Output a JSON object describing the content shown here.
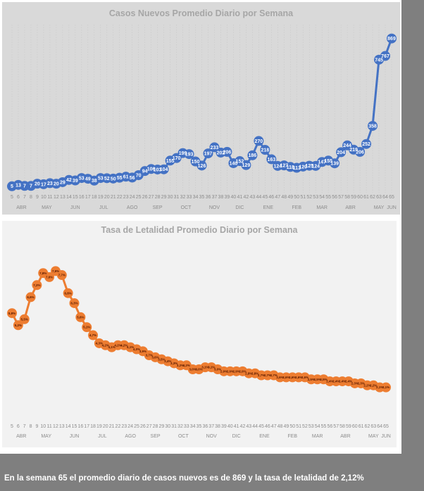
{
  "footer": {
    "summary": "En la semana 65 el promedio diario de casos nuevos  es de 869  y la tasa de letalidad de 2,12%"
  },
  "chart_data": [
    {
      "type": "line",
      "title": "Casos Nuevos  Promedio Diario por Semana",
      "xlabel": "",
      "ylabel": "",
      "series_color": "#4472c4",
      "grid": true,
      "legend": "none",
      "x": [
        5,
        6,
        7,
        8,
        9,
        10,
        11,
        12,
        13,
        14,
        15,
        16,
        17,
        18,
        19,
        20,
        21,
        22,
        23,
        24,
        25,
        26,
        27,
        28,
        29,
        30,
        31,
        32,
        33,
        34,
        35,
        36,
        37,
        38,
        39,
        40,
        41,
        42,
        43,
        44,
        45,
        46,
        47,
        48,
        49,
        50,
        51,
        52,
        53,
        54,
        55,
        56,
        57,
        58,
        59,
        60,
        61,
        62,
        63,
        64,
        65
      ],
      "x_tick_labels": [
        "5",
        "6",
        "7",
        "8",
        "9",
        "10",
        "11",
        "12",
        "13",
        "14",
        "15",
        "16",
        "17",
        "18",
        "19",
        "20",
        "21",
        "22",
        "23",
        "24",
        "25",
        "26",
        "27",
        "28",
        "29",
        "30",
        "31",
        "32",
        "33",
        "34",
        "35",
        "36",
        "37",
        "38",
        "39",
        "40",
        "41",
        "42",
        "43",
        "44",
        "45",
        "46",
        "47",
        "48",
        "49",
        "50",
        "51",
        "52",
        "53",
        "54",
        "55",
        "56",
        "57",
        "58",
        "59",
        "60",
        "61",
        "62",
        "63",
        "64",
        "65"
      ],
      "month_labels": [
        {
          "label": "ABR",
          "week": 6.5
        },
        {
          "label": "MAY",
          "week": 10.5
        },
        {
          "label": "JUN",
          "week": 15
        },
        {
          "label": "JUL",
          "week": 19.5
        },
        {
          "label": "AGO",
          "week": 24
        },
        {
          "label": "SEP",
          "week": 28
        },
        {
          "label": "OCT",
          "week": 32.5
        },
        {
          "label": "NOV",
          "week": 37
        },
        {
          "label": "DIC",
          "week": 41
        },
        {
          "label": "ENE",
          "week": 45.5
        },
        {
          "label": "FEB",
          "week": 50
        },
        {
          "label": "MAR",
          "week": 54
        },
        {
          "label": "ABR",
          "week": 58.5
        },
        {
          "label": "MAY",
          "week": 63
        },
        {
          "label": "JUN",
          "week": 65
        }
      ],
      "values": [
        5,
        13,
        7,
        7,
        20,
        17,
        23,
        20,
        29,
        42,
        39,
        53,
        49,
        38,
        53,
        52,
        50,
        55,
        61,
        56,
        70,
        94,
        106,
        103,
        104,
        155,
        170,
        199,
        193,
        150,
        126,
        197,
        233,
        202,
        206,
        140,
        152,
        129,
        186,
        270,
        218,
        163,
        124,
        127,
        118,
        113,
        120,
        125,
        124,
        147,
        155,
        139,
        204,
        244,
        219,
        206,
        252,
        358,
        745,
        767,
        869
      ],
      "data_labels": [
        "5",
        "13",
        "7",
        "7",
        "20",
        "17",
        "23",
        "20",
        "29",
        "42",
        "39",
        "53",
        "49",
        "38",
        "53",
        "52",
        "50",
        "55",
        "61",
        "56",
        "70",
        "94",
        "106",
        "103",
        "104",
        "155",
        "170",
        "199",
        "193",
        "150",
        "126",
        "197",
        "233",
        "202",
        "206",
        "140",
        "152",
        "129",
        "186",
        "270",
        "218",
        "163",
        "124",
        "127",
        "118",
        "113",
        "120",
        "125",
        "124",
        "147",
        "155",
        "139",
        "204",
        "244",
        "219",
        "206",
        "252",
        "358",
        "745",
        "767",
        "869"
      ],
      "ylim": [
        0,
        950
      ]
    },
    {
      "type": "line",
      "title": "Tasa de Letalidad Promedio Diario por Semana",
      "xlabel": "",
      "ylabel": "",
      "series_color": "#ed7d31",
      "grid": false,
      "legend": "none",
      "x": [
        5,
        6,
        7,
        8,
        9,
        10,
        11,
        12,
        13,
        14,
        15,
        16,
        17,
        18,
        19,
        20,
        21,
        22,
        23,
        24,
        25,
        26,
        27,
        28,
        29,
        30,
        31,
        32,
        33,
        34,
        35,
        36,
        37,
        38,
        39,
        40,
        41,
        42,
        43,
        44,
        45,
        46,
        47,
        48,
        49,
        50,
        51,
        52,
        53,
        54,
        55,
        56,
        57,
        58,
        59,
        60,
        61,
        62,
        63,
        64,
        65
      ],
      "x_tick_labels": [
        "5",
        "6",
        "7",
        "8",
        "9",
        "10",
        "11",
        "12",
        "13",
        "14",
        "15",
        "16",
        "17",
        "18",
        "19",
        "20",
        "21",
        "22",
        "23",
        "24",
        "25",
        "26",
        "27",
        "28",
        "29",
        "30",
        "31",
        "32",
        "33",
        "34",
        "35",
        "36",
        "37",
        "38",
        "39",
        "40",
        "41",
        "42",
        "43",
        "44",
        "45",
        "46",
        "47",
        "48",
        "49",
        "50",
        "51",
        "52",
        "53",
        "54",
        "55",
        "56",
        "57",
        "58",
        "59",
        "60",
        "61",
        "62",
        "63",
        "64",
        "65"
      ],
      "month_labels": [
        {
          "label": "ABR",
          "week": 6.5
        },
        {
          "label": "MAY",
          "week": 10.5
        },
        {
          "label": "JUN",
          "week": 15
        },
        {
          "label": "JUL",
          "week": 19.5
        },
        {
          "label": "AGO",
          "week": 24
        },
        {
          "label": "SEP",
          "week": 28
        },
        {
          "label": "OCT",
          "week": 32.5
        },
        {
          "label": "NOV",
          "week": 37
        },
        {
          "label": "DIC",
          "week": 41
        },
        {
          "label": "ENE",
          "week": 45.5
        },
        {
          "label": "FEB",
          "week": 50
        },
        {
          "label": "MAR",
          "week": 54
        },
        {
          "label": "ABR",
          "week": 58.5
        },
        {
          "label": "MAY",
          "week": 63
        },
        {
          "label": "JUN",
          "week": 65
        }
      ],
      "values": [
        5.8,
        5.2,
        5.5,
        6.6,
        7.2,
        7.8,
        7.6,
        7.9,
        7.7,
        6.8,
        6.3,
        5.6,
        5.1,
        4.7,
        4.3,
        4.2,
        4.1,
        4.2,
        4.2,
        4.1,
        4.0,
        3.9,
        3.7,
        3.6,
        3.5,
        3.4,
        3.3,
        3.2,
        3.2,
        3.0,
        3.0,
        3.1,
        3.1,
        3.0,
        2.9,
        2.9,
        2.9,
        2.9,
        2.8,
        2.8,
        2.7,
        2.7,
        2.7,
        2.6,
        2.6,
        2.6,
        2.6,
        2.6,
        2.5,
        2.5,
        2.5,
        2.4,
        2.4,
        2.4,
        2.4,
        2.3,
        2.3,
        2.2,
        2.2,
        2.1,
        2.1
      ],
      "data_labels": [
        "5,8%",
        "5,2%",
        "5,5%",
        "6,6%",
        "7,2%",
        "7,8%",
        "7,6%",
        "7,9%",
        "7,7%",
        "6,8%",
        "6,3%",
        "5,6%",
        "5,1%",
        "4,7%",
        "4,3%",
        "4,2%",
        "4,1%",
        "4,2%",
        "4,2%",
        "4,1%",
        "4,0%",
        "3,9%",
        "3,7%",
        "3,6%",
        "3,5%",
        "3,4%",
        "3,3%",
        "3,2%",
        "3,2%",
        "3,0%",
        "3,0%",
        "3,1%",
        "3,1%",
        "3,0%",
        "2,9%",
        "2,9%",
        "2,9%",
        "2,9%",
        "2,8%",
        "2,8%",
        "2,7%",
        "2,7%",
        "2,7%",
        "2,6%",
        "2,6%",
        "2,6%",
        "2,6%",
        "2,6%",
        "2,5%",
        "2,5%",
        "2,5%",
        "2,4%",
        "2,4%",
        "2,4%",
        "2,4%",
        "2,3%",
        "2,3%",
        "2,2%",
        "2,2%",
        "2,1%",
        "2,1%"
      ],
      "ylim": [
        1.0,
        9.0
      ]
    }
  ]
}
